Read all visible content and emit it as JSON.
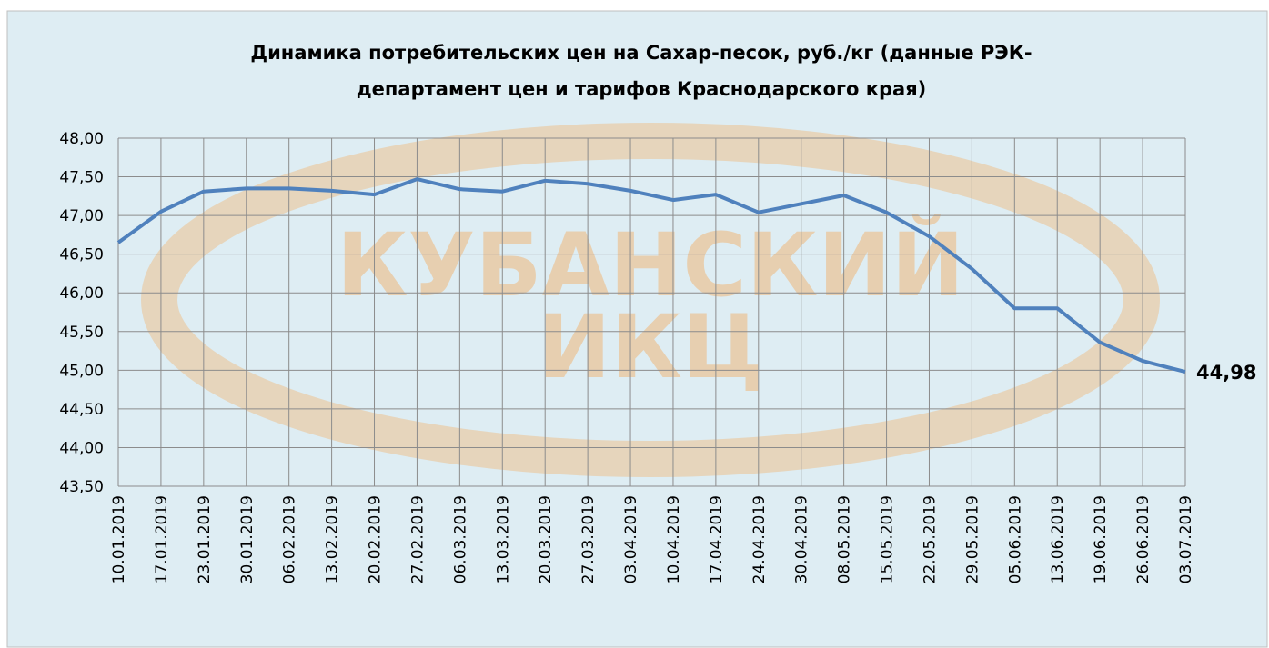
{
  "chart_data": {
    "type": "line",
    "title_lines": [
      "Динамика потребительских цен на Сахар-песок, руб./кг (данные РЭК-",
      "департамент цен и тарифов Краснодарского края)"
    ],
    "watermark_lines": [
      "КУБАНСКИЙ",
      "ИКЦ"
    ],
    "categories": [
      "10.01.2019",
      "17.01.2019",
      "23.01.2019",
      "30.01.2019",
      "06.02.2019",
      "13.02.2019",
      "20.02.2019",
      "27.02.2019",
      "06.03.2019",
      "13.03.2019",
      "20.03.2019",
      "27.03.2019",
      "03.04.2019",
      "10.04.2019",
      "17.04.2019",
      "24.04.2019",
      "30.04.2019",
      "08.05.2019",
      "15.05.2019",
      "22.05.2019",
      "29.05.2019",
      "05.06.2019",
      "13.06.2019",
      "19.06.2019",
      "26.06.2019",
      "03.07.2019"
    ],
    "series": [
      {
        "color": "#4f81bd",
        "values": [
          46.65,
          47.05,
          47.31,
          47.35,
          47.35,
          47.32,
          47.27,
          47.47,
          47.34,
          47.31,
          47.45,
          47.41,
          47.32,
          47.2,
          47.27,
          47.04,
          47.15,
          47.26,
          47.04,
          46.73,
          46.31,
          45.8,
          45.8,
          45.36,
          45.12,
          44.98
        ],
        "value_labels": [
          null,
          null,
          null,
          null,
          null,
          null,
          null,
          null,
          null,
          null,
          null,
          null,
          null,
          null,
          null,
          null,
          null,
          null,
          null,
          null,
          null,
          null,
          null,
          null,
          null,
          "44,98"
        ]
      }
    ],
    "ylim": [
      43.5,
      48
    ],
    "yticks": [
      {
        "value": 43.5,
        "label": "43,50"
      },
      {
        "value": 44,
        "label": "44,00"
      },
      {
        "value": 44.5,
        "label": "44,50"
      },
      {
        "value": 45,
        "label": "45,00"
      },
      {
        "value": 45.5,
        "label": "45,50"
      },
      {
        "value": 46,
        "label": "46,00"
      },
      {
        "value": 46.5,
        "label": "46,50"
      },
      {
        "value": 47,
        "label": "47,00"
      },
      {
        "value": 47.5,
        "label": "47,50"
      },
      {
        "value": 48,
        "label": "48,00"
      }
    ],
    "grid": true
  }
}
